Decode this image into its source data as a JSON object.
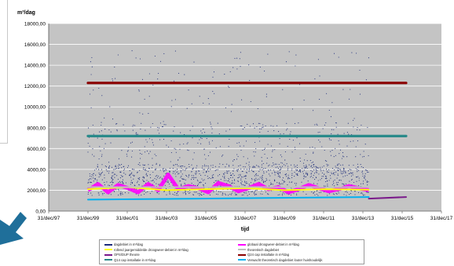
{
  "chart_data": {
    "type": "line",
    "ylabel_top": "m³/dag",
    "xlabel": "tijd",
    "x_ticks": [
      "31/dec/97",
      "31/dec/99",
      "31/dec/01",
      "31/dec/03",
      "31/dec/05",
      "31/dec/07",
      "31/dec/09",
      "31/dec/11",
      "31/dec/13",
      "31/dec/15",
      "31/dec/17"
    ],
    "y_ticks": [
      "0,00",
      "2000,00",
      "4000,00",
      "6000,00",
      "8000,00",
      "10000,00",
      "12000,00",
      "14000,00",
      "16000,00",
      "18000,00"
    ],
    "ylim": [
      0,
      18000
    ],
    "xlim": [
      1998,
      2018
    ],
    "grid": true,
    "series": [
      {
        "name": "dagdebiet in m³/dag",
        "color": "#1a2a7a",
        "style": "points",
        "x_range": [
          2000,
          2014.3
        ],
        "typical": [
          1500,
          4500
        ],
        "max": 15400
      },
      {
        "name": "globaal droogweer-debiet in m³/dag",
        "color": "#ff00ff",
        "style": "band",
        "x_range": [
          2000,
          2014.3
        ],
        "values": [
          2000,
          2600,
          1800,
          2500,
          2200,
          1800,
          2600,
          2000,
          3500,
          2100,
          2400,
          2200,
          1800,
          2700,
          2400,
          1900,
          2200,
          2600,
          2100,
          2300,
          1800,
          2100,
          2500,
          2200,
          1900,
          2100,
          2400,
          2200,
          2000
        ]
      },
      {
        "name": "rollend jaargemiddelde droogweer-debiet in m³/dag",
        "color": "#ffff00",
        "style": "line",
        "x": [
          2000,
          2002,
          2004,
          2006,
          2008,
          2010,
          2012,
          2014.3
        ],
        "values": [
          2100,
          2300,
          2000,
          2100,
          2200,
          2000,
          2100,
          2050
        ]
      },
      {
        "name": "theoretisch dagdebiet",
        "color": "#c0c0c0",
        "style": "line",
        "x": [
          2000,
          2014.3
        ],
        "values": [
          2300,
          2300
        ]
      },
      {
        "name": "OPS/DUP theorie",
        "color": "#7a1a8a",
        "style": "line",
        "x": [
          2014.3,
          2016.2
        ],
        "values": [
          1200,
          1350
        ]
      },
      {
        "name": "Q24 cap installatie in m³/dag",
        "color": "#8b0000",
        "style": "line",
        "x": [
          2000,
          2016.2
        ],
        "values": [
          12300,
          12300
        ]
      },
      {
        "name": "Q14 cap installatie in m³/dag",
        "color": "#2a8a8a",
        "style": "line",
        "x": [
          2000,
          2016.2
        ],
        "values": [
          7200,
          7200
        ]
      },
      {
        "name": "Verwacht theoretisch dagdebiet louter huishoudelijk",
        "color": "#00b0f0",
        "style": "line",
        "x": [
          2000,
          2014.3
        ],
        "values": [
          1100,
          1350
        ]
      }
    ]
  },
  "legend": {
    "items": [
      {
        "label": "dagdebiet in m³/dag",
        "color": "#1a2a7a"
      },
      {
        "label": "globaal droogweer-debiet in m³/dag",
        "color": "#ff00ff"
      },
      {
        "label": "rollend jaargemiddelde droogweer-debiet in m³/dag",
        "color": "#ffff00"
      },
      {
        "label": "theoretisch dagdebiet",
        "color": "#c0c0c0"
      },
      {
        "label": "OPS/DUP theorie",
        "color": "#7a1a8a"
      },
      {
        "label": "Q24 cap installatie in m³/dag",
        "color": "#8b0000"
      },
      {
        "label": "Q14 cap installatie in m³/dag",
        "color": "#2a8a8a"
      },
      {
        "label": "Verwacht theoretisch dagdebiet louter huishoudelijk",
        "color": "#00b0f0"
      }
    ]
  },
  "colors": {
    "plot_bg": "#c4c4c4",
    "grid": "#ffffff",
    "arrow": "#1f6f9a"
  }
}
